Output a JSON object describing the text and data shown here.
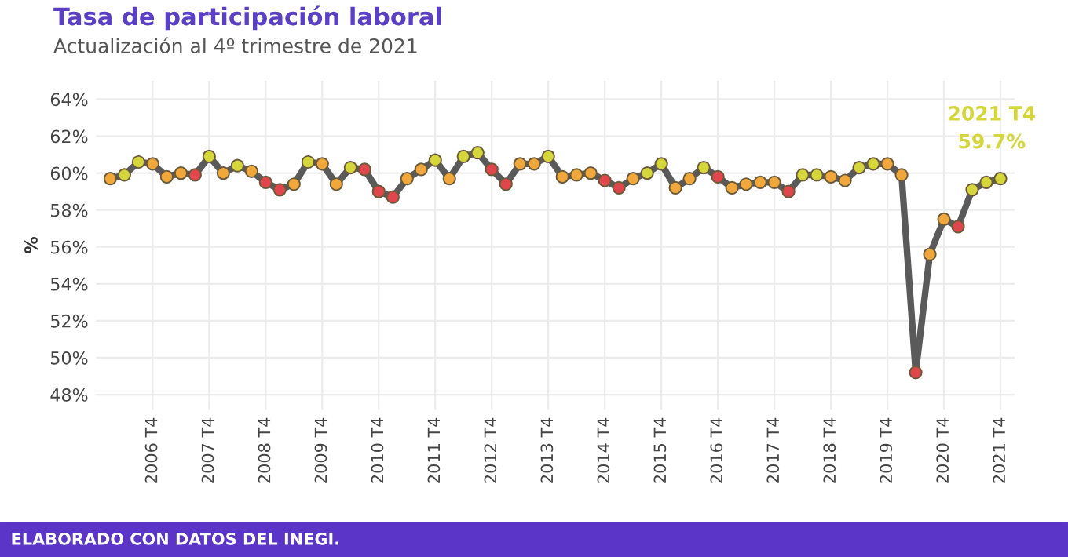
{
  "chart_data": {
    "type": "line",
    "title": "Tasa de participación laboral",
    "subtitle": "Actualización al 4º trimestre de 2021",
    "ylabel": "%",
    "categories": [
      null,
      null,
      null,
      "2006 T4",
      null,
      null,
      null,
      "2007 T4",
      null,
      null,
      null,
      "2008 T4",
      null,
      null,
      null,
      "2009 T4",
      null,
      null,
      null,
      "2010 T4",
      null,
      null,
      null,
      "2011 T4",
      null,
      null,
      null,
      "2012 T4",
      null,
      null,
      null,
      "2013 T4",
      null,
      null,
      null,
      "2014 T4",
      null,
      null,
      null,
      "2015 T4",
      null,
      null,
      null,
      "2016 T4",
      null,
      null,
      null,
      "2017 T4",
      null,
      null,
      null,
      "2018 T4",
      null,
      null,
      null,
      "2019 T4",
      null,
      null,
      null,
      "2020 T4",
      null,
      null,
      null,
      "2021 T4"
    ],
    "series": [
      {
        "color": "#5a5a5a",
        "values": [
          59.7,
          59.9,
          60.6,
          60.5,
          59.8,
          60.0,
          59.9,
          60.9,
          60.0,
          60.4,
          60.1,
          59.5,
          59.1,
          59.4,
          60.6,
          60.5,
          59.4,
          60.3,
          60.2,
          59.0,
          58.7,
          59.7,
          60.2,
          60.7,
          59.7,
          60.9,
          61.1,
          60.2,
          59.4,
          60.5,
          60.5,
          60.9,
          59.8,
          59.9,
          60.0,
          59.6,
          59.2,
          59.7,
          60.0,
          60.5,
          59.2,
          59.7,
          60.3,
          59.8,
          59.2,
          59.4,
          59.5,
          59.5,
          59.0,
          59.9,
          59.9,
          59.8,
          59.6,
          60.3,
          60.5,
          60.5,
          59.9,
          49.2,
          55.6,
          57.5,
          57.1,
          59.1,
          59.5,
          59.7
        ],
        "colors": [
          "#f0a83c",
          "#d4d63c",
          "#d4d63c",
          "#f0a83c",
          "#f0a83c",
          "#f0a83c",
          "#e0474c",
          "#d4d63c",
          "#f0a83c",
          "#d4d63c",
          "#f0a83c",
          "#e0474c",
          "#e0474c",
          "#f0a83c",
          "#d4d63c",
          "#f0a83c",
          "#f0a83c",
          "#d4d63c",
          "#e0474c",
          "#e0474c",
          "#e0474c",
          "#f0a83c",
          "#f0a83c",
          "#d4d63c",
          "#f0a83c",
          "#d4d63c",
          "#d4d63c",
          "#e0474c",
          "#e0474c",
          "#f0a83c",
          "#f0a83c",
          "#d4d63c",
          "#f0a83c",
          "#f0a83c",
          "#f0a83c",
          "#e0474c",
          "#e0474c",
          "#f0a83c",
          "#d4d63c",
          "#d4d63c",
          "#f0a83c",
          "#f0a83c",
          "#d4d63c",
          "#e0474c",
          "#f0a83c",
          "#f0a83c",
          "#f0a83c",
          "#f0a83c",
          "#e0474c",
          "#d4d63c",
          "#d4d63c",
          "#f0a83c",
          "#f0a83c",
          "#d4d63c",
          "#d4d63c",
          "#f0a83c",
          "#f0a83c",
          "#e0474c",
          "#f0a83c",
          "#f0a83c",
          "#e0474c",
          "#d4d63c",
          "#d4d63c",
          "#d4d63c"
        ]
      }
    ],
    "ylim": [
      47.2,
      65
    ],
    "yticks": [
      {
        "value": 48,
        "label": "48%"
      },
      {
        "value": 50,
        "label": "50%"
      },
      {
        "value": 52,
        "label": "52%"
      },
      {
        "value": 54,
        "label": "54%"
      },
      {
        "value": 56,
        "label": "56%"
      },
      {
        "value": 58,
        "label": "58%"
      },
      {
        "value": 60,
        "label": "60%"
      },
      {
        "value": 62,
        "label": "62%"
      },
      {
        "value": 64,
        "label": "64%"
      }
    ],
    "grid": true,
    "marker": "circle",
    "line_style": "solid",
    "annotations": [
      {
        "text": "2021 T4\n59.7%",
        "x": "2021 T4",
        "y": 59.7
      },
      "ELABORADO CON DATOS DEL INEGI."
    ]
  }
}
